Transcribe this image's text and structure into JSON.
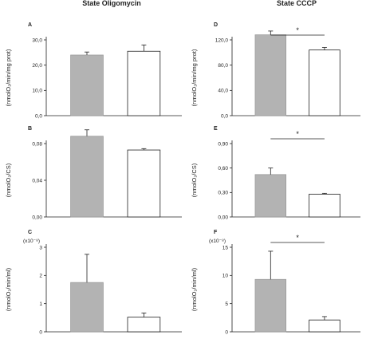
{
  "titles": {
    "left": "State Oligomycin",
    "right": "State CCCP"
  },
  "colors": {
    "control": "#b3b3b3",
    "treated": "#ffffff",
    "axis": "#222222"
  },
  "chart_data": [
    {
      "type": "bar",
      "panel": "A",
      "ylabel": "(nmolO₂/min/mg prot)",
      "yticks": [
        "0,0",
        "10,0",
        "20,0",
        "30,0"
      ],
      "ylim": [
        0,
        30
      ],
      "values": [
        24.0,
        25.5
      ],
      "errors": [
        1.2,
        2.5
      ],
      "multiplier": "",
      "significance": ""
    },
    {
      "type": "bar",
      "panel": "D",
      "ylabel": "(nmolO₂/min/mg prot)",
      "yticks": [
        "0,0",
        "40,0",
        "80,0",
        "120,0"
      ],
      "ylim": [
        0,
        120
      ],
      "values": [
        128,
        104
      ],
      "errors": [
        6,
        4
      ],
      "multiplier": "",
      "significance": "*"
    },
    {
      "type": "bar",
      "panel": "B",
      "ylabel": "(nmolO₂/CS)",
      "yticks": [
        "0,00",
        "0,04",
        "0,08"
      ],
      "ylim": [
        0,
        0.08
      ],
      "values": [
        0.088,
        0.073
      ],
      "errors": [
        0.007,
        0.0015
      ],
      "multiplier": "",
      "significance": ""
    },
    {
      "type": "bar",
      "panel": "E",
      "ylabel": "(nmolO₂/CS)",
      "yticks": [
        "0,00",
        "0,30",
        "0,60",
        "0,90"
      ],
      "ylim": [
        0,
        0.9
      ],
      "values": [
        0.52,
        0.28
      ],
      "errors": [
        0.08,
        0.01
      ],
      "multiplier": "",
      "significance": "*"
    },
    {
      "type": "bar",
      "panel": "C",
      "ylabel": "(nmolO₂/min/ml)",
      "yticks": [
        "0",
        "1",
        "2",
        "3"
      ],
      "ylim": [
        0,
        3
      ],
      "values": [
        1.75,
        0.52
      ],
      "errors": [
        1.0,
        0.15
      ],
      "multiplier": "(x10⁻⁸)",
      "significance": ""
    },
    {
      "type": "bar",
      "panel": "F",
      "ylabel": "(nmolO₂/min/ml)",
      "yticks": [
        "0",
        "5",
        "10",
        "15"
      ],
      "ylim": [
        0,
        15
      ],
      "values": [
        9.3,
        2.1
      ],
      "errors": [
        5.0,
        0.6
      ],
      "multiplier": "(x10⁻⁸)",
      "significance": "*"
    }
  ]
}
